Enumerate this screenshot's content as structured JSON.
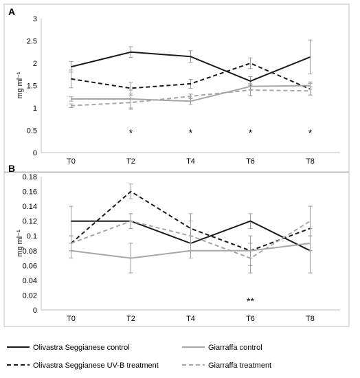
{
  "figure": {
    "legend": [
      {
        "label": "Olivastra Seggianese control",
        "color": "#1a1a1a",
        "dashed": false
      },
      {
        "label": "Giarraffa control",
        "color": "#a6a6a6",
        "dashed": false
      },
      {
        "label": "Olivastra Seggianese UV-B treatment",
        "color": "#1a1a1a",
        "dashed": true
      },
      {
        "label": "Giarraffa treatment",
        "color": "#a6a6a6",
        "dashed": true
      }
    ]
  },
  "chart_data": [
    {
      "type": "line",
      "panel_label": "A",
      "ylabel": "mg ml⁻¹",
      "categories": [
        "T0",
        "T2",
        "T4",
        "T6",
        "T8"
      ],
      "ylim": [
        0,
        3
      ],
      "yticks": [
        "0",
        "0.5",
        "1",
        "1.5",
        "2",
        "2.5",
        "3"
      ],
      "yticks_values": [
        0,
        0.5,
        1,
        1.5,
        2,
        2.5,
        3
      ],
      "grid": false,
      "significance": [
        "",
        "*",
        "*",
        "*",
        "*"
      ],
      "sig_y": 0.45,
      "series": [
        {
          "name": "Olivastra Seggianese control",
          "color": "#1a1a1a",
          "dashed": false,
          "values": [
            1.92,
            2.25,
            2.15,
            1.6,
            2.14
          ],
          "errors": [
            0.12,
            0.12,
            0.13,
            0.1,
            0.38
          ]
        },
        {
          "name": "Olivastra Seggianese UV-B treatment",
          "color": "#1a1a1a",
          "dashed": true,
          "values": [
            1.65,
            1.44,
            1.54,
            2.0,
            1.42
          ],
          "errors": [
            0.2,
            0.13,
            0.1,
            0.12,
            0.13
          ]
        },
        {
          "name": "Giarraffa control",
          "color": "#a6a6a6",
          "dashed": false,
          "values": [
            1.2,
            1.2,
            1.15,
            1.48,
            1.5
          ],
          "errors": [
            0.05,
            0.2,
            0.07,
            0.07,
            0.08
          ]
        },
        {
          "name": "Giarraffa treatment",
          "color": "#a6a6a6",
          "dashed": true,
          "values": [
            1.05,
            1.12,
            1.26,
            1.4,
            1.38
          ],
          "errors": [
            0.04,
            0.15,
            0.05,
            0.13,
            0.09
          ]
        }
      ]
    },
    {
      "type": "line",
      "panel_label": "B",
      "ylabel": "mg ml⁻¹",
      "categories": [
        "T0",
        "T2",
        "T4",
        "T6",
        "T8"
      ],
      "ylim": [
        0,
        0.18
      ],
      "yticks": [
        "0",
        "0.02",
        "0.04",
        "0.06",
        "0.08",
        "0.1",
        "0.12",
        "0.14",
        "0.16",
        "0.18"
      ],
      "yticks_values": [
        0,
        0.02,
        0.04,
        0.06,
        0.08,
        0.1,
        0.12,
        0.14,
        0.16,
        0.18
      ],
      "grid": false,
      "significance": [
        "",
        "",
        "",
        "**",
        ""
      ],
      "sig_y": 0.012,
      "series": [
        {
          "name": "Olivastra Seggianese control",
          "color": "#1a1a1a",
          "dashed": false,
          "values": [
            0.12,
            0.12,
            0.09,
            0.12,
            0.08
          ],
          "errors": [
            0.02,
            0.01,
            0.01,
            0.01,
            0.03
          ]
        },
        {
          "name": "Olivastra Seggianese UV-B treatment",
          "color": "#1a1a1a",
          "dashed": true,
          "values": [
            0.09,
            0.16,
            0.11,
            0.08,
            0.11
          ],
          "errors": [
            0.01,
            0.01,
            0.02,
            0.01,
            0.03
          ]
        },
        {
          "name": "Giarraffa control",
          "color": "#a6a6a6",
          "dashed": false,
          "values": [
            0.08,
            0.07,
            0.08,
            0.08,
            0.09
          ],
          "errors": [
            0.01,
            0.02,
            0.01,
            0.02,
            0.01
          ]
        },
        {
          "name": "Giarraffa treatment",
          "color": "#a6a6a6",
          "dashed": true,
          "values": [
            0.09,
            0.12,
            0.1,
            0.07,
            0.12
          ],
          "errors": [
            0.01,
            0.01,
            0.02,
            0.02,
            0.02
          ]
        }
      ]
    }
  ]
}
